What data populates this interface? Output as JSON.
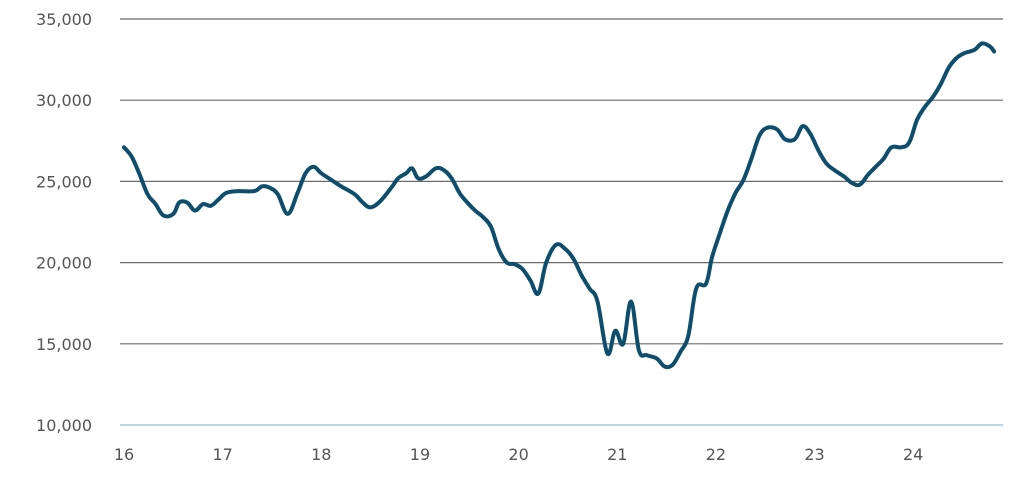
{
  "chart_data": {
    "type": "line",
    "title": "",
    "xlabel": "",
    "ylabel": "",
    "xlim": [
      16,
      24.88
    ],
    "ylim": [
      10000,
      35000
    ],
    "x_ticks": [
      16,
      17,
      18,
      19,
      20,
      21,
      22,
      23,
      24
    ],
    "x_tick_labels": [
      "16",
      "17",
      "18",
      "19",
      "20",
      "21",
      "22",
      "23",
      "24"
    ],
    "y_ticks": [
      10000,
      15000,
      20000,
      25000,
      30000,
      35000
    ],
    "y_tick_labels": [
      "10,000",
      "15,000",
      "20,000",
      "25,000",
      "30,000",
      "35,000"
    ],
    "grid": true,
    "legend": "none",
    "color": "#0e4d6b",
    "series": [
      {
        "values": [
          [
            16.0,
            27100
          ],
          [
            16.08,
            26500
          ],
          [
            16.16,
            25400
          ],
          [
            16.24,
            24200
          ],
          [
            16.32,
            23600
          ],
          [
            16.4,
            22900
          ],
          [
            16.5,
            23000
          ],
          [
            16.56,
            23700
          ],
          [
            16.64,
            23700
          ],
          [
            16.72,
            23200
          ],
          [
            16.8,
            23600
          ],
          [
            16.88,
            23500
          ],
          [
            16.96,
            23900
          ],
          [
            17.04,
            24300
          ],
          [
            17.16,
            24400
          ],
          [
            17.32,
            24400
          ],
          [
            17.4,
            24700
          ],
          [
            17.48,
            24600
          ],
          [
            17.56,
            24200
          ],
          [
            17.66,
            23000
          ],
          [
            17.76,
            24300
          ],
          [
            17.84,
            25500
          ],
          [
            17.92,
            25900
          ],
          [
            18.0,
            25500
          ],
          [
            18.1,
            25100
          ],
          [
            18.2,
            24700
          ],
          [
            18.34,
            24200
          ],
          [
            18.42,
            23700
          ],
          [
            18.5,
            23400
          ],
          [
            18.6,
            23800
          ],
          [
            18.72,
            24700
          ],
          [
            18.78,
            25200
          ],
          [
            18.86,
            25500
          ],
          [
            18.92,
            25800
          ],
          [
            18.98,
            25200
          ],
          [
            19.06,
            25300
          ],
          [
            19.16,
            25800
          ],
          [
            19.24,
            25700
          ],
          [
            19.32,
            25200
          ],
          [
            19.4,
            24300
          ],
          [
            19.48,
            23700
          ],
          [
            19.56,
            23200
          ],
          [
            19.64,
            22800
          ],
          [
            19.72,
            22200
          ],
          [
            19.8,
            20800
          ],
          [
            19.88,
            20000
          ],
          [
            19.96,
            19900
          ],
          [
            20.04,
            19600
          ],
          [
            20.12,
            18900
          ],
          [
            20.2,
            18100
          ],
          [
            20.28,
            20000
          ],
          [
            20.38,
            21100
          ],
          [
            20.48,
            20800
          ],
          [
            20.56,
            20200
          ],
          [
            20.64,
            19200
          ],
          [
            20.72,
            18400
          ],
          [
            20.8,
            17600
          ],
          [
            20.9,
            14400
          ],
          [
            20.98,
            15800
          ],
          [
            21.06,
            15000
          ],
          [
            21.14,
            17600
          ],
          [
            21.22,
            14600
          ],
          [
            21.3,
            14300
          ],
          [
            21.4,
            14100
          ],
          [
            21.48,
            13600
          ],
          [
            21.56,
            13700
          ],
          [
            21.64,
            14500
          ],
          [
            21.72,
            15500
          ],
          [
            21.8,
            18400
          ],
          [
            21.9,
            18700
          ],
          [
            21.96,
            20300
          ],
          [
            22.04,
            21800
          ],
          [
            22.12,
            23200
          ],
          [
            22.2,
            24300
          ],
          [
            22.28,
            25100
          ],
          [
            22.36,
            26400
          ],
          [
            22.44,
            27800
          ],
          [
            22.52,
            28300
          ],
          [
            22.62,
            28200
          ],
          [
            22.7,
            27600
          ],
          [
            22.8,
            27600
          ],
          [
            22.88,
            28400
          ],
          [
            22.96,
            27900
          ],
          [
            23.04,
            26900
          ],
          [
            23.12,
            26100
          ],
          [
            23.2,
            25700
          ],
          [
            23.3,
            25300
          ],
          [
            23.38,
            24900
          ],
          [
            23.46,
            24800
          ],
          [
            23.54,
            25400
          ],
          [
            23.62,
            25900
          ],
          [
            23.7,
            26400
          ],
          [
            23.78,
            27100
          ],
          [
            23.88,
            27100
          ],
          [
            23.96,
            27400
          ],
          [
            24.04,
            28800
          ],
          [
            24.12,
            29600
          ],
          [
            24.2,
            30200
          ],
          [
            24.28,
            31000
          ],
          [
            24.36,
            32000
          ],
          [
            24.44,
            32600
          ],
          [
            24.52,
            32900
          ],
          [
            24.62,
            33100
          ],
          [
            24.7,
            33500
          ],
          [
            24.78,
            33300
          ],
          [
            24.82,
            33000
          ]
        ]
      }
    ]
  }
}
